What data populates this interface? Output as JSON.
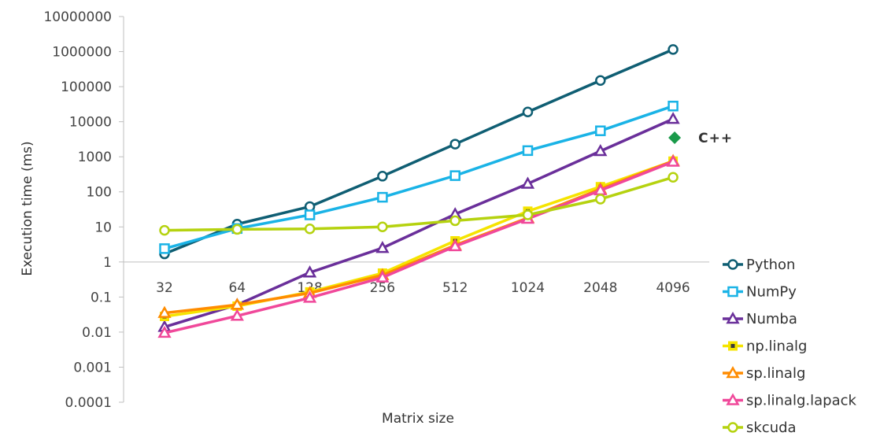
{
  "chart_data": {
    "type": "line",
    "title": "",
    "xlabel": "Matrix size",
    "ylabel": "Execution time (ms)",
    "y_scale": "log",
    "ylim": [
      0.0001,
      10000000
    ],
    "y_ticks": [
      "0.0001",
      "0.001",
      "0.01",
      "0.1",
      "1",
      "10",
      "100",
      "1000",
      "10000",
      "100000",
      "1000000",
      "10000000"
    ],
    "categories": [
      "32",
      "64",
      "128",
      "256",
      "512",
      "1024",
      "2048",
      "4096"
    ],
    "grid": false,
    "legend_position": "right",
    "series": [
      {
        "name": "Python",
        "color": "#0f5e73",
        "marker": "circle",
        "values": [
          1.7,
          12,
          38,
          280,
          2300,
          19000,
          150000,
          1150000
        ]
      },
      {
        "name": "NumPy",
        "color": "#1ab3e6",
        "marker": "square",
        "values": [
          2.4,
          9,
          22,
          70,
          290,
          1500,
          5500,
          28000
        ]
      },
      {
        "name": "Numba",
        "color": "#6a2f9a",
        "marker": "triangle",
        "values": [
          0.014,
          0.06,
          0.5,
          2.5,
          23,
          170,
          1450,
          12000
        ]
      },
      {
        "name": "np.linalg",
        "color": "#f5e400",
        "marker": "square-filled-dark",
        "values": [
          0.028,
          0.055,
          0.14,
          0.48,
          4,
          28,
          140,
          750
        ]
      },
      {
        "name": "sp.linalg",
        "color": "#ff8c00",
        "marker": "triangle",
        "values": [
          0.035,
          0.06,
          0.13,
          0.42,
          3,
          18,
          120,
          760
        ]
      },
      {
        "name": "sp.linalg.lapack",
        "color": "#f0489a",
        "marker": "triangle",
        "values": [
          0.0095,
          0.029,
          0.095,
          0.36,
          2.8,
          17,
          110,
          720
        ]
      },
      {
        "name": "skcuda",
        "color": "#b5d20f",
        "marker": "circle",
        "values": [
          8,
          8.5,
          8.8,
          10,
          15,
          22,
          62,
          260
        ]
      }
    ],
    "annotations": [
      {
        "text": "C++",
        "color": "#1a9a4a",
        "marker": "diamond",
        "x": "4096",
        "y": 3500
      }
    ]
  }
}
